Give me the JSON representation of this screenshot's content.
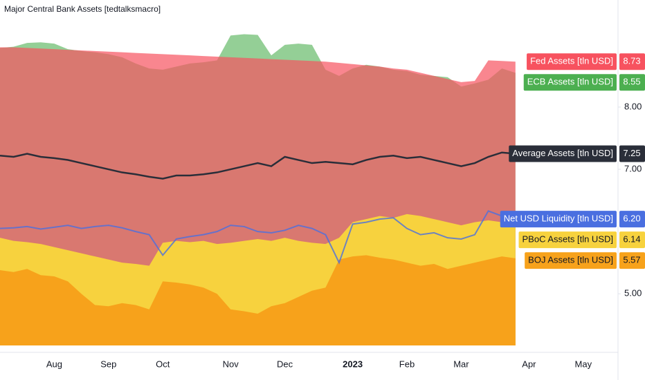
{
  "chart_data": {
    "type": "area",
    "title": "Major Central Bank Assets [tedtalksmacro]",
    "categories": [
      null,
      null,
      null,
      null,
      "Aug",
      null,
      null,
      null,
      "Sep",
      null,
      null,
      null,
      "Oct",
      null,
      null,
      null,
      null,
      "Nov",
      null,
      null,
      null,
      "Dec",
      null,
      null,
      null,
      null,
      "2023",
      null,
      null,
      null,
      "Feb",
      null,
      null,
      null,
      "Mar",
      null,
      null,
      null,
      null,
      "Apr",
      null,
      null,
      null,
      "May",
      null,
      null
    ],
    "ylim": [
      4.17,
      9.72
    ],
    "yticks": [
      {
        "value": 5,
        "label": "5.00"
      },
      {
        "value": 7,
        "label": "7.00"
      },
      {
        "value": 8,
        "label": "8.00"
      }
    ],
    "series": [
      {
        "name": "Fed Assets [tln USD]",
        "type": "area",
        "color": "#f7525f",
        "values": [
          8.96,
          8.96,
          8.95,
          8.94,
          8.93,
          8.92,
          8.91,
          8.9,
          8.89,
          8.88,
          8.87,
          8.86,
          8.85,
          8.84,
          8.83,
          8.82,
          8.81,
          8.8,
          8.79,
          8.78,
          8.77,
          8.76,
          8.75,
          8.74,
          8.73,
          8.71,
          8.69,
          8.67,
          8.65,
          8.62,
          8.6,
          8.55,
          8.5,
          8.45,
          8.4,
          8.42,
          8.75,
          8.74,
          8.73,
          null,
          null,
          null,
          null,
          null,
          null,
          null
        ]
      },
      {
        "name": "ECB Assets [tln USD]",
        "type": "area",
        "color": "#4caf50",
        "values": [
          8.95,
          8.97,
          9.03,
          9.04,
          9.02,
          8.93,
          8.9,
          8.88,
          8.85,
          8.8,
          8.7,
          8.62,
          8.6,
          8.65,
          8.7,
          8.72,
          8.75,
          9.15,
          9.17,
          9.16,
          8.83,
          9.0,
          9.02,
          9.0,
          8.6,
          8.5,
          8.62,
          8.68,
          8.65,
          8.6,
          8.58,
          8.52,
          8.5,
          8.48,
          8.33,
          8.38,
          8.44,
          8.62,
          8.55,
          null,
          null,
          null,
          null,
          null,
          null,
          null
        ]
      },
      {
        "name": "Average Assets [tln USD]",
        "type": "line",
        "color": "#2a2e39",
        "values": [
          7.22,
          7.2,
          7.25,
          7.2,
          7.18,
          7.15,
          7.1,
          7.05,
          7.0,
          6.95,
          6.92,
          6.88,
          6.85,
          6.9,
          6.9,
          6.92,
          6.95,
          7.0,
          7.05,
          7.1,
          7.05,
          7.2,
          7.15,
          7.1,
          7.12,
          7.1,
          7.08,
          7.15,
          7.2,
          7.22,
          7.18,
          7.2,
          7.15,
          7.1,
          7.05,
          7.1,
          7.2,
          7.27,
          7.25,
          null,
          null,
          null,
          null,
          null,
          null,
          null
        ]
      },
      {
        "name": "Net USD Liquidity [tln USD]",
        "type": "line",
        "color": "#4a6fe0",
        "values": [
          6.05,
          6.06,
          6.08,
          6.04,
          6.07,
          6.1,
          6.05,
          6.08,
          6.1,
          6.06,
          6.0,
          5.95,
          5.62,
          5.88,
          5.92,
          5.95,
          6.0,
          6.1,
          6.08,
          6.0,
          5.98,
          6.02,
          6.1,
          6.05,
          5.95,
          5.5,
          6.12,
          6.15,
          6.2,
          6.22,
          6.05,
          5.95,
          5.98,
          5.9,
          5.88,
          5.95,
          6.33,
          6.25,
          6.2,
          null,
          null,
          null,
          null,
          null,
          null,
          null
        ],
        "value_labels": [
          null,
          null,
          null,
          null,
          null,
          null,
          null,
          null,
          null,
          null,
          null,
          null,
          null,
          null,
          null,
          null,
          null,
          null,
          null,
          null,
          null,
          null,
          null,
          null,
          null,
          null,
          null,
          null,
          null,
          null,
          null,
          null,
          null,
          null,
          null,
          null,
          null,
          null,
          "6.20",
          null,
          null,
          null,
          null,
          null,
          null,
          null
        ]
      },
      {
        "name": "PBoC Assets [tln USD]",
        "type": "area",
        "color": "#f7d23e",
        "values": [
          5.9,
          5.85,
          5.83,
          5.8,
          5.75,
          5.7,
          5.65,
          5.6,
          5.55,
          5.5,
          5.48,
          5.45,
          5.82,
          5.85,
          5.83,
          5.85,
          5.8,
          5.82,
          5.85,
          5.88,
          5.85,
          5.9,
          5.85,
          5.82,
          5.8,
          5.9,
          6.15,
          6.2,
          6.25,
          6.22,
          6.28,
          6.25,
          6.2,
          6.15,
          6.1,
          6.15,
          6.18,
          6.15,
          6.14,
          null,
          null,
          null,
          null,
          null,
          null,
          null
        ]
      },
      {
        "name": "BOJ Assets [tln USD]",
        "type": "area",
        "color": "#f7a21b",
        "values": [
          5.38,
          5.35,
          5.4,
          5.3,
          5.28,
          5.2,
          5.0,
          4.82,
          4.8,
          4.85,
          4.82,
          4.75,
          5.2,
          5.18,
          5.15,
          5.1,
          5.0,
          4.75,
          4.72,
          4.68,
          4.8,
          4.85,
          4.95,
          5.05,
          5.1,
          5.55,
          5.6,
          5.62,
          5.58,
          5.55,
          5.5,
          5.45,
          5.48,
          5.4,
          5.45,
          5.5,
          5.55,
          5.6,
          5.57,
          null,
          null,
          null,
          null,
          null,
          null,
          null
        ]
      }
    ]
  }
}
